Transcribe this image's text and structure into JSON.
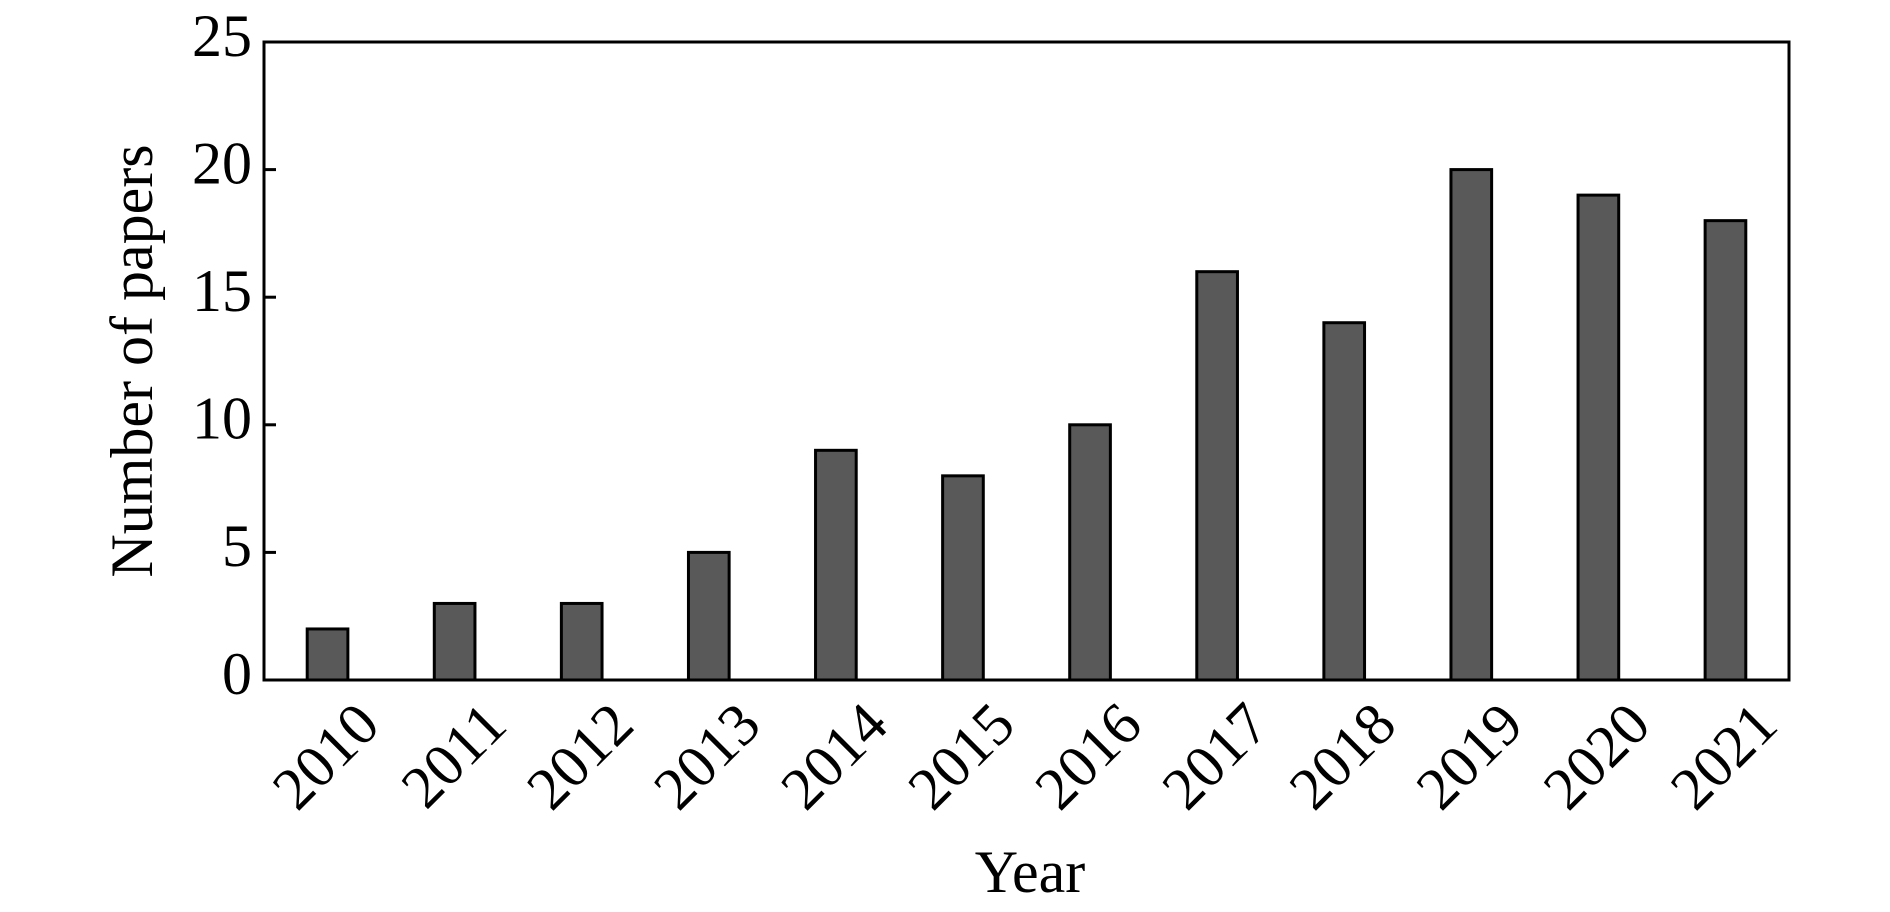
{
  "chart_data": {
    "type": "bar",
    "x_label": "Year",
    "y_label": "Number of papers",
    "categories": [
      "2010",
      "2011",
      "2012",
      "2013",
      "2014",
      "2015",
      "2016",
      "2017",
      "2018",
      "2019",
      "2020",
      "2021"
    ],
    "values": [
      2,
      3,
      3,
      5,
      9,
      8,
      10,
      16,
      14,
      20,
      19,
      18
    ],
    "color": "#595959",
    "ylim": [
      0,
      25
    ],
    "yticks": [
      0,
      5,
      10,
      15,
      20,
      25
    ],
    "grid": false
  }
}
